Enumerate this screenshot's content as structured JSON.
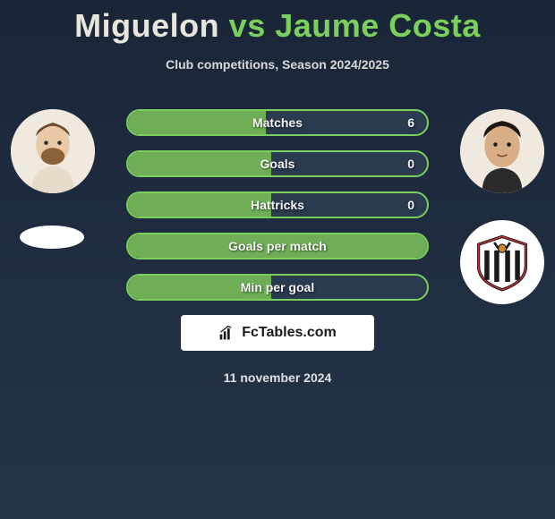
{
  "header": {
    "player1": "Miguelon",
    "vs": "vs",
    "player2": "Jaume Costa"
  },
  "subtitle": "Club competitions, Season 2024/2025",
  "stats": [
    {
      "label": "Matches",
      "value": "6",
      "fill_pct": 46
    },
    {
      "label": "Goals",
      "value": "0",
      "fill_pct": 48
    },
    {
      "label": "Hattricks",
      "value": "0",
      "fill_pct": 48
    },
    {
      "label": "Goals per match",
      "value": "",
      "fill_pct": 100
    },
    {
      "label": "Min per goal",
      "value": "",
      "fill_pct": 48
    }
  ],
  "branding": {
    "logo_text": "FcTables.com"
  },
  "date": "11 november 2024",
  "colors": {
    "accent": "#7bcf5c",
    "bar_fill": "#6fae56",
    "bar_bg": "#2a3a4f",
    "bg_top": "#1a2638",
    "bg_bottom": "#253449",
    "white": "#ffffff"
  },
  "icons": {
    "player_left": "avatar-male-1",
    "player_right": "avatar-male-2",
    "club_left": "club-ellipse-white",
    "club_right": "club-shield-striped",
    "logo": "bar-chart-icon"
  }
}
